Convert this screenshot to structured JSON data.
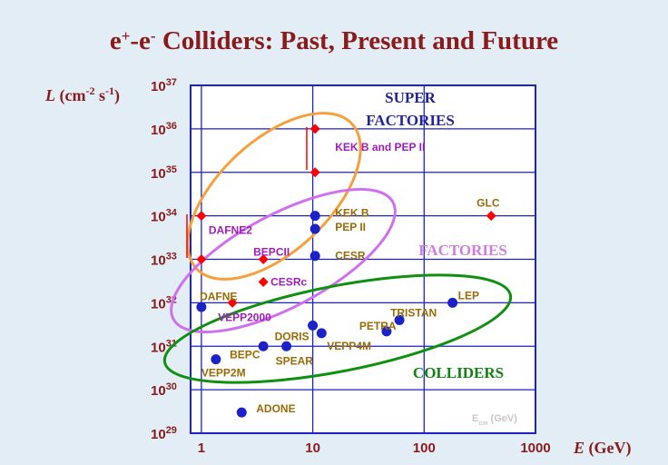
{
  "chart_data": {
    "type": "scatter",
    "title": "e+-e- Colliders: Past, Present and Future",
    "xlabel": "E (GeV)",
    "ylabel": "L (cm-2 s-1)",
    "x_scale": "log",
    "y_scale": "log",
    "xlim": [
      0.8,
      1000
    ],
    "ylim": [
      1e+29,
      1e+37
    ],
    "grid": true,
    "x_ticks": [
      "1",
      "10",
      "100",
      "1000"
    ],
    "y_ticks": [
      {
        "base": "10",
        "exp": "29"
      },
      {
        "base": "10",
        "exp": "30"
      },
      {
        "base": "10",
        "exp": "31"
      },
      {
        "base": "10",
        "exp": "32"
      },
      {
        "base": "10",
        "exp": "33"
      },
      {
        "base": "10",
        "exp": "34"
      },
      {
        "base": "10",
        "exp": "35"
      },
      {
        "base": "10",
        "exp": "36"
      },
      {
        "base": "10",
        "exp": "37"
      }
    ],
    "colors": {
      "plot_bg": "#ffffff",
      "frame": "#1a22c8",
      "existing": "#1a22c8",
      "future": "#ff0000",
      "label_brown": "#9a6a05",
      "label_purple": "#a21cc0",
      "super_factories": "#23239a",
      "factories": "#d07ce0",
      "colliders": "#128012",
      "ellipse_orange": "#f5a03a",
      "ellipse_violet": "#d070f0",
      "ellipse_green": "#109010"
    },
    "points": [
      {
        "name": "ADONE",
        "E": 2.3,
        "L": 3e+29,
        "marker": "circle",
        "label_color": "brown"
      },
      {
        "name": "VEPP2M",
        "E": 1.35,
        "L": 5e+30,
        "marker": "circle",
        "label_color": "brown"
      },
      {
        "name": "BEPC",
        "E": 3.6,
        "L": 1e+31,
        "marker": "circle",
        "label_color": "brown"
      },
      {
        "name": "SPEAR",
        "E": 5.8,
        "L": 1e+31,
        "marker": "circle",
        "label_color": "brown"
      },
      {
        "name": "DORIS",
        "E": 10,
        "L": 3e+31,
        "marker": "circle",
        "label_color": "brown"
      },
      {
        "name": "VEPP4M",
        "E": 12,
        "L": 2e+31,
        "marker": "circle",
        "label_color": "brown"
      },
      {
        "name": "PETRA",
        "E": 46,
        "L": 2.2e+31,
        "marker": "circle",
        "label_color": "brown"
      },
      {
        "name": "TRISTAN",
        "E": 60,
        "L": 4e+31,
        "marker": "circle",
        "label_color": "brown"
      },
      {
        "name": "LEP",
        "E": 180,
        "L": 1e+32,
        "marker": "circle",
        "label_color": "brown"
      },
      {
        "name": "",
        "E": 1.0,
        "L": 8e+31,
        "marker": "circle",
        "label_color": "brown"
      },
      {
        "name": "DAFNE",
        "E": 1.9,
        "L": 1e+32,
        "marker": "diamond",
        "label_color": "brown"
      },
      {
        "name": "VEPP2000",
        "E": 1.9,
        "L": 1e+32,
        "marker": "none",
        "label_color": "purple"
      },
      {
        "name": "CESRc",
        "E": 3.6,
        "L": 3e+32,
        "marker": "diamond",
        "label_color": "purple"
      },
      {
        "name": "BEPCII",
        "E": 3.6,
        "L": 1e+33,
        "marker": "diamond",
        "label_color": "purple"
      },
      {
        "name": "CESR",
        "E": 10.5,
        "L": 1.2e+33,
        "marker": "circle",
        "label_color": "brown"
      },
      {
        "name": "PEP II",
        "E": 10.5,
        "L": 5e+33,
        "marker": "circle",
        "label_color": "brown"
      },
      {
        "name": "KEK B",
        "E": 10.5,
        "L": 1e+34,
        "marker": "circle",
        "label_color": "brown"
      },
      {
        "name": "DAFNE2",
        "E": 1.0,
        "L": 1e+34,
        "marker": "diamond",
        "label_color": "purple"
      },
      {
        "name": "",
        "E": 1.0,
        "L": 1e+33,
        "marker": "diamond",
        "label_color": "purple"
      },
      {
        "name": "KEK B and PEP II",
        "E": 10.5,
        "L": 1e+36,
        "marker": "diamond",
        "label_color": "purple"
      },
      {
        "name": "",
        "E": 10.5,
        "L": 1e+35,
        "marker": "diamond",
        "label_color": "purple"
      },
      {
        "name": "GLC",
        "E": 400,
        "L": 1e+34,
        "marker": "diamond",
        "label_color": "brown"
      }
    ],
    "regions": [
      "SUPER",
      "FACTORIES",
      "FACTORIES",
      "COLLIDERS"
    ],
    "annotation": "E_cm (GeV)"
  }
}
